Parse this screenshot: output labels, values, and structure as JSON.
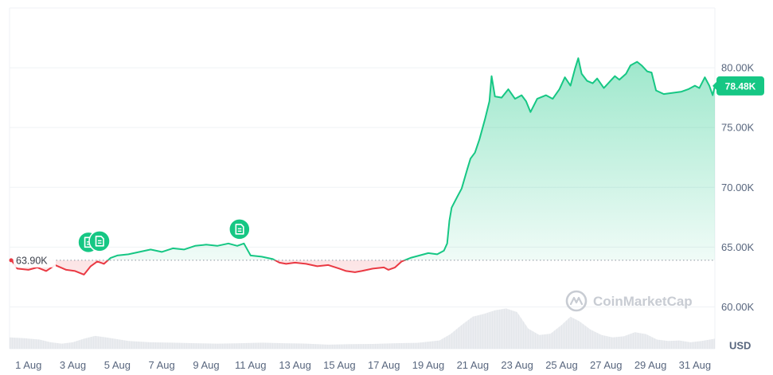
{
  "chart_data": {
    "type": "line",
    "unit": "USD",
    "baseline_value": 63900,
    "baseline_label": "63.90K",
    "current_value": 78480,
    "current_label": "78.48K",
    "ylim": [
      56500,
      85000
    ],
    "y_ticks": [
      {
        "value": 60000,
        "label": "60.00K"
      },
      {
        "value": 65000,
        "label": "65.00K"
      },
      {
        "value": 70000,
        "label": "70.00K"
      },
      {
        "value": 75000,
        "label": "75.00K"
      },
      {
        "value": 80000,
        "label": "80.00K"
      }
    ],
    "x_range": [
      0.15,
      31.9
    ],
    "x_ticks": [
      {
        "day": 1,
        "label": "1 Aug"
      },
      {
        "day": 3,
        "label": "3 Aug"
      },
      {
        "day": 5,
        "label": "5 Aug"
      },
      {
        "day": 7,
        "label": "7 Aug"
      },
      {
        "day": 9,
        "label": "9 Aug"
      },
      {
        "day": 11,
        "label": "11 Aug"
      },
      {
        "day": 13,
        "label": "13 Aug"
      },
      {
        "day": 15,
        "label": "15 Aug"
      },
      {
        "day": 17,
        "label": "17 Aug"
      },
      {
        "day": 19,
        "label": "19 Aug"
      },
      {
        "day": 21,
        "label": "21 Aug"
      },
      {
        "day": 23,
        "label": "23 Aug"
      },
      {
        "day": 25,
        "label": "25 Aug"
      },
      {
        "day": 27,
        "label": "27 Aug"
      },
      {
        "day": 29,
        "label": "29 Aug"
      },
      {
        "day": 31,
        "label": "31 Aug"
      }
    ],
    "series": [
      {
        "points": [
          [
            0.2,
            64000
          ],
          [
            0.5,
            63200
          ],
          [
            1.0,
            63100
          ],
          [
            1.4,
            63300
          ],
          [
            1.8,
            63000
          ],
          [
            2.2,
            63500
          ],
          [
            2.7,
            63100
          ],
          [
            3.1,
            63000
          ],
          [
            3.5,
            62700
          ],
          [
            3.8,
            63400
          ],
          [
            4.1,
            63800
          ],
          [
            4.4,
            63600
          ],
          [
            4.7,
            64100
          ],
          [
            5.0,
            64300
          ],
          [
            5.5,
            64400
          ],
          [
            6.0,
            64600
          ],
          [
            6.5,
            64800
          ],
          [
            7.0,
            64600
          ],
          [
            7.5,
            64900
          ],
          [
            8.0,
            64800
          ],
          [
            8.5,
            65100
          ],
          [
            9.0,
            65200
          ],
          [
            9.5,
            65100
          ],
          [
            10.0,
            65300
          ],
          [
            10.4,
            65100
          ],
          [
            10.7,
            65300
          ],
          [
            11.0,
            64300
          ],
          [
            11.5,
            64200
          ],
          [
            12.0,
            64000
          ],
          [
            12.3,
            63700
          ],
          [
            12.6,
            63600
          ],
          [
            13.0,
            63700
          ],
          [
            13.5,
            63600
          ],
          [
            14.0,
            63400
          ],
          [
            14.5,
            63500
          ],
          [
            15.0,
            63200
          ],
          [
            15.3,
            63000
          ],
          [
            15.7,
            62900
          ],
          [
            16.0,
            63000
          ],
          [
            16.5,
            63200
          ],
          [
            17.0,
            63300
          ],
          [
            17.2,
            63100
          ],
          [
            17.5,
            63300
          ],
          [
            17.8,
            63800
          ],
          [
            18.2,
            64100
          ],
          [
            18.6,
            64300
          ],
          [
            19.0,
            64500
          ],
          [
            19.4,
            64400
          ],
          [
            19.7,
            64700
          ],
          [
            19.85,
            65300
          ],
          [
            19.95,
            67200
          ],
          [
            20.05,
            68300
          ],
          [
            20.3,
            69200
          ],
          [
            20.5,
            69900
          ],
          [
            20.75,
            71500
          ],
          [
            20.9,
            72400
          ],
          [
            21.1,
            72900
          ],
          [
            21.3,
            74000
          ],
          [
            21.55,
            75700
          ],
          [
            21.75,
            77200
          ],
          [
            21.85,
            79300
          ],
          [
            22.0,
            77600
          ],
          [
            22.3,
            77500
          ],
          [
            22.6,
            78200
          ],
          [
            22.9,
            77400
          ],
          [
            23.2,
            77700
          ],
          [
            23.4,
            77200
          ],
          [
            23.6,
            76300
          ],
          [
            23.9,
            77400
          ],
          [
            24.3,
            77700
          ],
          [
            24.6,
            77400
          ],
          [
            24.9,
            78200
          ],
          [
            25.15,
            79200
          ],
          [
            25.4,
            78500
          ],
          [
            25.6,
            79900
          ],
          [
            25.75,
            80800
          ],
          [
            25.9,
            79500
          ],
          [
            26.15,
            78900
          ],
          [
            26.4,
            78700
          ],
          [
            26.6,
            79100
          ],
          [
            26.9,
            78300
          ],
          [
            27.2,
            78900
          ],
          [
            27.4,
            79300
          ],
          [
            27.6,
            79000
          ],
          [
            27.9,
            79500
          ],
          [
            28.1,
            80200
          ],
          [
            28.4,
            80500
          ],
          [
            28.6,
            80200
          ],
          [
            28.85,
            79700
          ],
          [
            29.05,
            79600
          ],
          [
            29.25,
            78100
          ],
          [
            29.6,
            77800
          ],
          [
            30.0,
            77900
          ],
          [
            30.4,
            78000
          ],
          [
            30.7,
            78200
          ],
          [
            31.0,
            78500
          ],
          [
            31.2,
            78300
          ],
          [
            31.45,
            79200
          ],
          [
            31.65,
            78500
          ],
          [
            31.8,
            77700
          ],
          [
            31.9,
            78480
          ]
        ]
      }
    ],
    "volume": [
      [
        0.15,
        0.62
      ],
      [
        0.8,
        0.58
      ],
      [
        1.5,
        0.5
      ],
      [
        2.0,
        0.35
      ],
      [
        2.5,
        0.28
      ],
      [
        3.0,
        0.35
      ],
      [
        3.5,
        0.55
      ],
      [
        4.0,
        0.7
      ],
      [
        4.5,
        0.62
      ],
      [
        5.5,
        0.42
      ],
      [
        6.5,
        0.35
      ],
      [
        7.5,
        0.33
      ],
      [
        8.5,
        0.3
      ],
      [
        9.5,
        0.28
      ],
      [
        10.5,
        0.3
      ],
      [
        11.5,
        0.33
      ],
      [
        12.5,
        0.3
      ],
      [
        13.5,
        0.28
      ],
      [
        14.5,
        0.22
      ],
      [
        15.5,
        0.25
      ],
      [
        16.5,
        0.26
      ],
      [
        17.5,
        0.3
      ],
      [
        18.5,
        0.32
      ],
      [
        19.5,
        0.45
      ],
      [
        20.0,
        0.8
      ],
      [
        20.5,
        1.3
      ],
      [
        21.0,
        1.75
      ],
      [
        21.5,
        1.9
      ],
      [
        22.0,
        2.1
      ],
      [
        22.5,
        2.2
      ],
      [
        23.0,
        2.0
      ],
      [
        23.5,
        1.1
      ],
      [
        24.0,
        0.75
      ],
      [
        24.5,
        0.82
      ],
      [
        25.0,
        1.3
      ],
      [
        25.4,
        1.75
      ],
      [
        25.8,
        1.5
      ],
      [
        26.3,
        1.05
      ],
      [
        26.8,
        0.75
      ],
      [
        27.3,
        0.62
      ],
      [
        27.8,
        0.68
      ],
      [
        28.3,
        0.9
      ],
      [
        28.8,
        0.8
      ],
      [
        29.3,
        0.5
      ],
      [
        29.8,
        0.42
      ],
      [
        30.3,
        0.45
      ],
      [
        30.8,
        0.35
      ],
      [
        31.3,
        0.42
      ],
      [
        31.9,
        0.55
      ]
    ],
    "annotations": [
      {
        "day": 3.7,
        "value": 65400,
        "label": "news"
      },
      {
        "day": 4.2,
        "value": 65500,
        "label": "news"
      },
      {
        "day": 10.5,
        "value": 66500,
        "label": "news"
      }
    ],
    "grid": true,
    "watermark": "CoinMarketCap"
  }
}
